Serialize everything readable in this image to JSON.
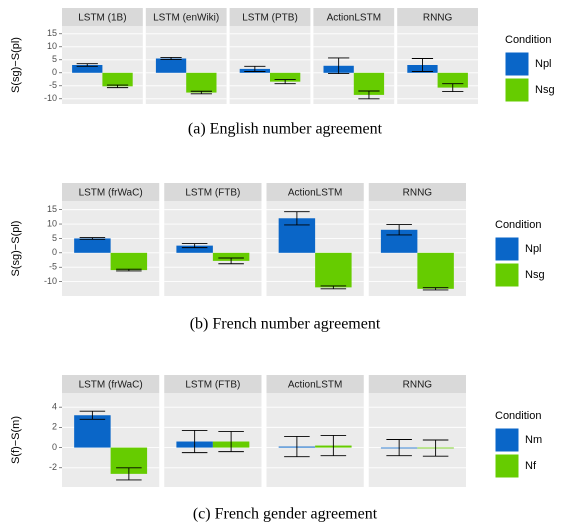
{
  "chart_data": [
    {
      "type": "bar",
      "ylabel": "S(sg)−S(pl)",
      "caption": "(a) English number agreement",
      "legend_title": "Condition",
      "categories": [
        "LSTM (1B)",
        "LSTM (enWiki)",
        "LSTM (PTB)",
        "ActionLSTM",
        "RNNG"
      ],
      "series": [
        {
          "name": "Npl",
          "color": "#0a66c8",
          "values": [
            3,
            5.5,
            1.5,
            2.7,
            3
          ],
          "errors": [
            0.5,
            0.4,
            1,
            3,
            2.5
          ]
        },
        {
          "name": "Nsg",
          "color": "#66cc00",
          "values": [
            -5.2,
            -7.6,
            -3.4,
            -8.5,
            -5.7
          ],
          "errors": [
            0.5,
            0.5,
            0.8,
            1.5,
            1.5
          ]
        }
      ],
      "ylim": [
        -12,
        18
      ],
      "yticks": [
        -10,
        -5,
        0,
        5,
        10,
        15
      ],
      "grid": true
    },
    {
      "type": "bar",
      "ylabel": "S(sg)−S(pl)",
      "caption": "(b) French number agreement",
      "legend_title": "Condition",
      "categories": [
        "LSTM (frWaC)",
        "LSTM (FTB)",
        "ActionLSTM",
        "RNNG"
      ],
      "series": [
        {
          "name": "Npl",
          "color": "#0a66c8",
          "values": [
            5,
            2.5,
            12,
            8
          ],
          "errors": [
            0.3,
            0.7,
            2.3,
            1.8
          ]
        },
        {
          "name": "Nsg",
          "color": "#66cc00",
          "values": [
            -6,
            -2.8,
            -12,
            -12.5
          ],
          "errors": [
            0.3,
            1,
            0.5,
            0.4
          ]
        }
      ],
      "ylim": [
        -15,
        18
      ],
      "yticks": [
        -10,
        -5,
        0,
        5,
        10,
        15
      ],
      "grid": true
    },
    {
      "type": "bar",
      "ylabel": "S(f)−S(m)",
      "caption": "(c) French gender agreement",
      "legend_title": "Condition",
      "categories": [
        "LSTM (frWaC)",
        "LSTM (FTB)",
        "ActionLSTM",
        "RNNG"
      ],
      "series": [
        {
          "name": "Nm",
          "color": "#0a66c8",
          "values": [
            3.2,
            0.6,
            0.1,
            0
          ],
          "errors": [
            0.4,
            1.1,
            1,
            0.8
          ]
        },
        {
          "name": "Nf",
          "color": "#66cc00",
          "values": [
            -2.6,
            0.6,
            0.2,
            -0.05
          ],
          "errors": [
            0.6,
            1,
            1,
            0.8
          ]
        }
      ],
      "ylim": [
        -3.9,
        5.4
      ],
      "yticks": [
        -2,
        0,
        2,
        4
      ],
      "grid": true
    }
  ]
}
